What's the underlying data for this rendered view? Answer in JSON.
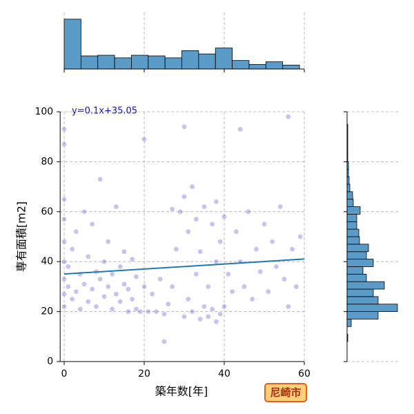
{
  "chart_data": {
    "type": "scatter",
    "xlabel": "築年数[年]",
    "ylabel": "専有面積[m2]",
    "xlim": [
      -1,
      60
    ],
    "ylim": [
      0,
      100
    ],
    "xticks": [
      0,
      20,
      40,
      60
    ],
    "yticks": [
      0,
      20,
      40,
      60,
      80,
      100
    ],
    "grid": true,
    "color": "#3a3ac0",
    "x": [
      0,
      0,
      0,
      0,
      0,
      0,
      0,
      0,
      1,
      1,
      2,
      2,
      3,
      3,
      4,
      4,
      5,
      5,
      6,
      6,
      7,
      7,
      8,
      8,
      9,
      9,
      10,
      10,
      11,
      11,
      12,
      12,
      13,
      13,
      14,
      14,
      15,
      15,
      16,
      16,
      17,
      17,
      18,
      18,
      19,
      20,
      20,
      21,
      22,
      23,
      24,
      25,
      26,
      27,
      28,
      29,
      30,
      30,
      31,
      31,
      32,
      32,
      33,
      33,
      34,
      34,
      35,
      35,
      36,
      36,
      37,
      37,
      38,
      38,
      38,
      39,
      39,
      40,
      40,
      41,
      42,
      43,
      44,
      45,
      46,
      47,
      48,
      49,
      50,
      51,
      52,
      53,
      54,
      55,
      56,
      57,
      58,
      59,
      0,
      25,
      44,
      56,
      30,
      27
    ],
    "values": [
      22,
      27,
      33,
      40,
      48,
      57,
      65,
      93,
      30,
      38,
      25,
      45,
      28,
      52,
      21,
      35,
      31,
      60,
      24,
      42,
      29,
      55,
      22,
      36,
      33,
      73,
      26,
      40,
      30,
      48,
      21,
      35,
      27,
      62,
      24,
      38,
      31,
      44,
      20,
      29,
      25,
      41,
      21,
      34,
      20,
      30,
      89,
      20,
      27,
      20,
      33,
      19,
      23,
      30,
      45,
      60,
      18,
      66,
      25,
      52,
      20,
      70,
      35,
      57,
      17,
      44,
      22,
      62,
      18,
      30,
      21,
      55,
      16,
      40,
      64,
      19,
      48,
      22,
      58,
      35,
      28,
      52,
      40,
      30,
      60,
      25,
      45,
      36,
      55,
      28,
      48,
      38,
      62,
      33,
      22,
      45,
      30,
      50,
      87,
      8,
      93,
      98,
      94,
      61
    ],
    "regression": {
      "label": "y=0.1x+35.05",
      "slope": 0.1,
      "intercept": 35.05,
      "color": "#1f77b4"
    },
    "top_histogram": {
      "bins": [
        0,
        4.2,
        8.4,
        12.6,
        16.8,
        21,
        25.2,
        29.4,
        33.6,
        37.8,
        42,
        46.2,
        50.4,
        54.6,
        58.8
      ],
      "counts": [
        76,
        20,
        21,
        17,
        21,
        20,
        17,
        28,
        23,
        32,
        13,
        7,
        11,
        6
      ],
      "ylim": [
        0,
        80
      ],
      "color": "#5a9bc8"
    },
    "right_histogram": {
      "bins": [
        8,
        11,
        14,
        17,
        20,
        23,
        26,
        29,
        32,
        35,
        38,
        41,
        44,
        47,
        50,
        53,
        56,
        59,
        62,
        65,
        68,
        71,
        74,
        77,
        80,
        83,
        86,
        89,
        92,
        95,
        98
      ],
      "counts": [
        1,
        0,
        6,
        45,
        73,
        45,
        38,
        54,
        28,
        23,
        38,
        28,
        31,
        18,
        17,
        14,
        14,
        19,
        9,
        8,
        4,
        3,
        2,
        2,
        1,
        1,
        1,
        1,
        1,
        0
      ],
      "xlim": [
        0,
        75
      ],
      "color": "#5a9bc8"
    },
    "badge": "尼崎市"
  }
}
